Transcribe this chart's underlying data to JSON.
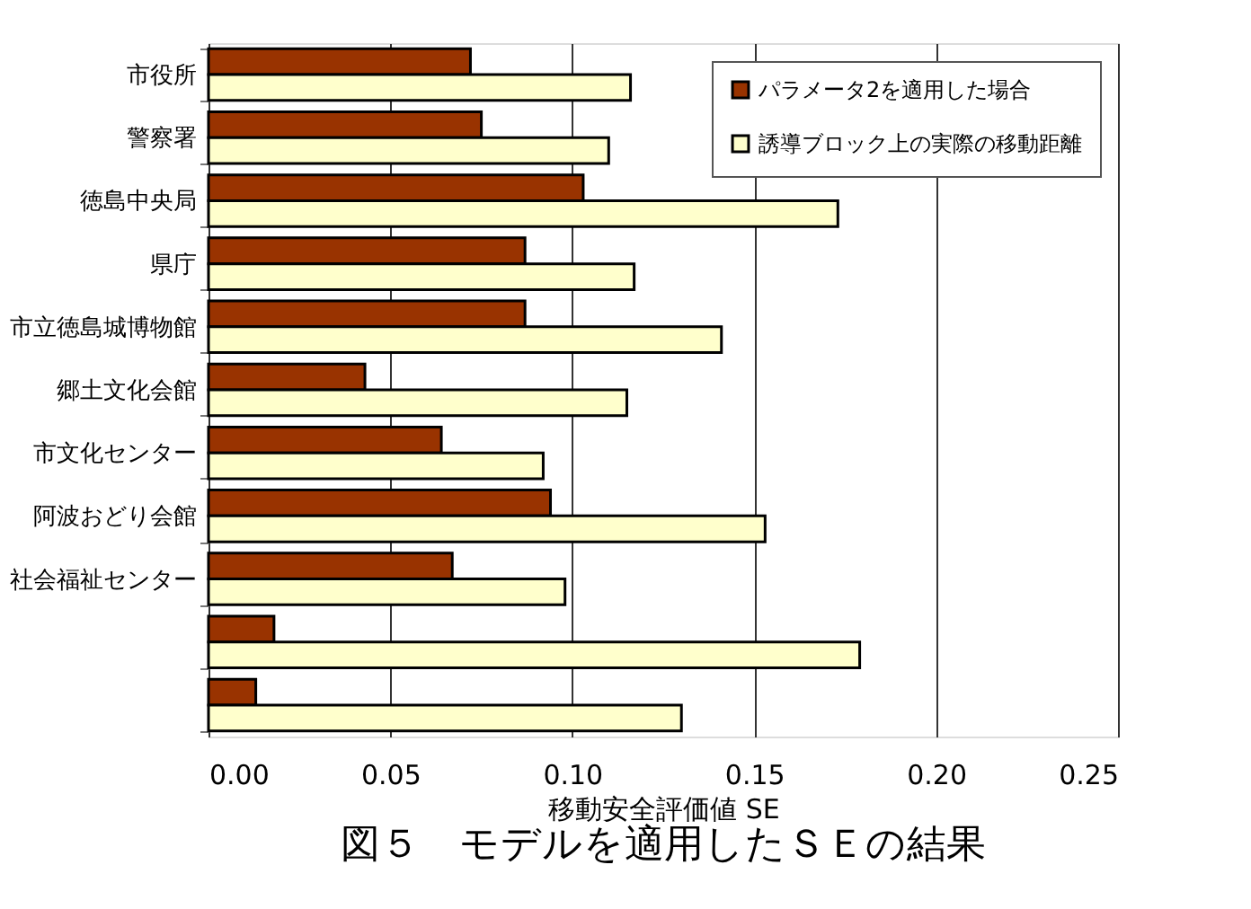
{
  "chart_data": {
    "type": "bar",
    "orientation": "horizontal",
    "title": "図５　モデルを適用したＳＥの結果",
    "xlabel": "移動安全評価値  SE",
    "categories": [
      "市役所",
      "警察署",
      "徳島中央局",
      "県庁",
      "市立徳島城博物館",
      "郷土文化会館",
      "市文化センター",
      "阿波おどり会館",
      "社会福祉センター",
      null,
      null
    ],
    "series": [
      {
        "name": "パラメータ2を適用した場合",
        "color": "#993300",
        "values": [
          0.072,
          0.075,
          0.103,
          0.087,
          0.087,
          0.043,
          0.064,
          0.094,
          0.067,
          0.018,
          0.013
        ]
      },
      {
        "name": "誘導ブロック上の実際の移動距離",
        "color": "#ffffcc",
        "values": [
          0.116,
          0.11,
          0.173,
          0.117,
          0.141,
          0.115,
          0.092,
          0.153,
          0.098,
          0.179,
          0.13
        ]
      }
    ],
    "xlim": [
      0,
      0.25
    ],
    "xticks": [
      {
        "value": 0,
        "label": "0.00"
      },
      {
        "value": 0.05,
        "label": "0.05"
      },
      {
        "value": 0.1,
        "label": "0.10"
      },
      {
        "value": 0.15,
        "label": "0.15"
      },
      {
        "value": 0.2,
        "label": "0.20"
      },
      {
        "value": 0.25,
        "label": "0.25"
      }
    ],
    "grid": "x",
    "legend": "top right"
  }
}
